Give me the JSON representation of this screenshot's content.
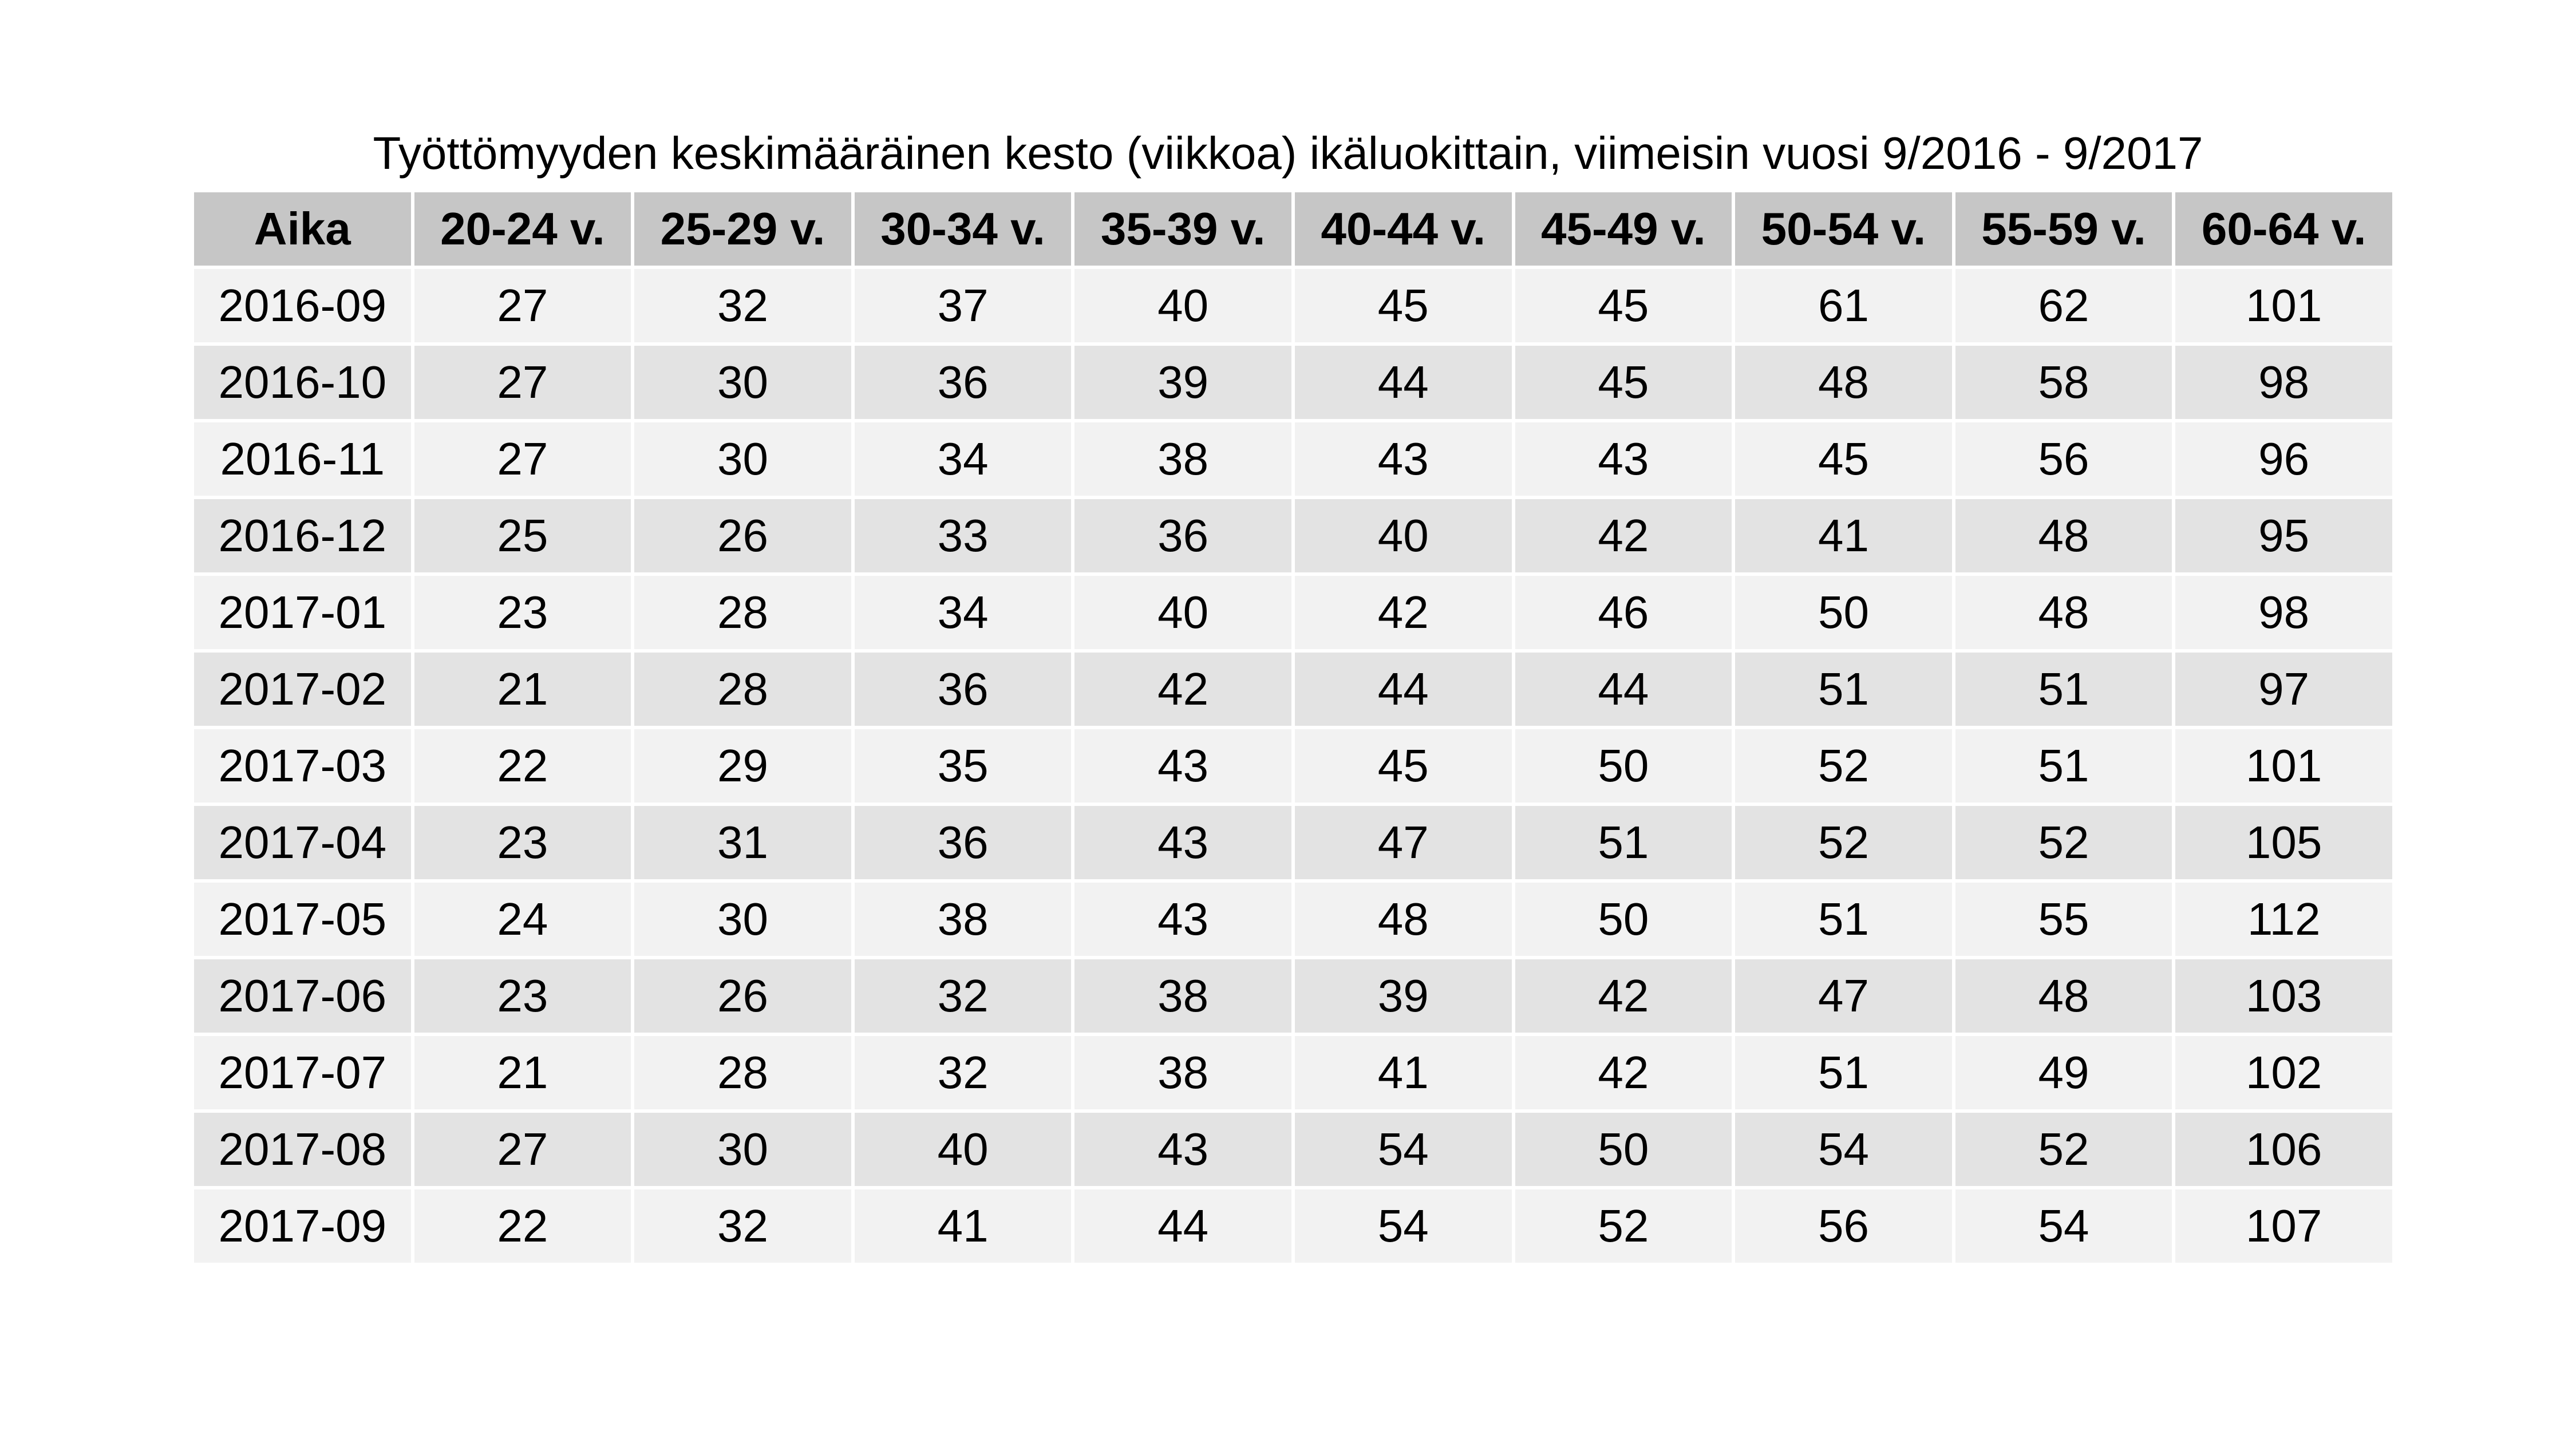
{
  "chart_data": {
    "type": "table",
    "title": "Työttömyyden keskimääräinen kesto (viikkoa) ikäluokittain, viimeisin vuosi 9/2016 - 9/2017",
    "columns": [
      "Aika",
      "20-24 v.",
      "25-29 v.",
      "30-34 v.",
      "35-39 v.",
      "40-44 v.",
      "45-49 v.",
      "50-54 v.",
      "55-59 v.",
      "60-64 v."
    ],
    "rows": [
      [
        "2016-09",
        27,
        32,
        37,
        40,
        45,
        45,
        61,
        62,
        101
      ],
      [
        "2016-10",
        27,
        30,
        36,
        39,
        44,
        45,
        48,
        58,
        98
      ],
      [
        "2016-11",
        27,
        30,
        34,
        38,
        43,
        43,
        45,
        56,
        96
      ],
      [
        "2016-12",
        25,
        26,
        33,
        36,
        40,
        42,
        41,
        48,
        95
      ],
      [
        "2017-01",
        23,
        28,
        34,
        40,
        42,
        46,
        50,
        48,
        98
      ],
      [
        "2017-02",
        21,
        28,
        36,
        42,
        44,
        44,
        51,
        51,
        97
      ],
      [
        "2017-03",
        22,
        29,
        35,
        43,
        45,
        50,
        52,
        51,
        101
      ],
      [
        "2017-04",
        23,
        31,
        36,
        43,
        47,
        51,
        52,
        52,
        105
      ],
      [
        "2017-05",
        24,
        30,
        38,
        43,
        48,
        50,
        51,
        55,
        112
      ],
      [
        "2017-06",
        23,
        26,
        32,
        38,
        39,
        42,
        47,
        48,
        103
      ],
      [
        "2017-07",
        21,
        28,
        32,
        38,
        41,
        42,
        51,
        49,
        102
      ],
      [
        "2017-08",
        27,
        30,
        40,
        43,
        54,
        50,
        54,
        52,
        106
      ],
      [
        "2017-09",
        22,
        32,
        41,
        44,
        54,
        52,
        56,
        54,
        107
      ]
    ]
  },
  "colors": {
    "header_bg": "#c6c6c6",
    "row_light": "#f2f2f2",
    "row_dark": "#e3e3e3",
    "grid_line": "#ffffff"
  }
}
